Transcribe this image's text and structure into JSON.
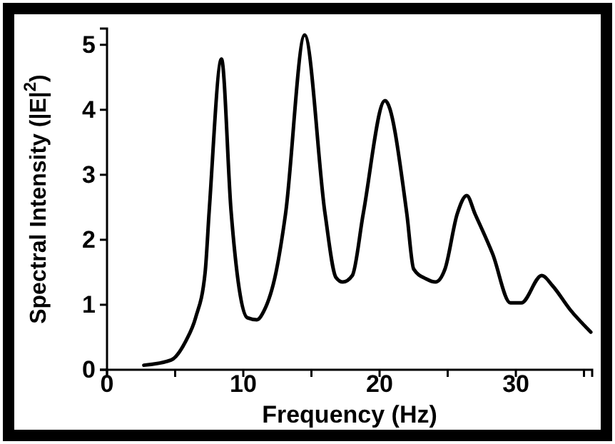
{
  "chart_data": {
    "type": "line",
    "xlabel": "Frequency (Hz)",
    "ylabel": "Spectral Intensity (|E|$^{2}$)",
    "xlim": [
      0,
      35.6
    ],
    "ylim": [
      0,
      5.25
    ],
    "xticks": [
      0,
      {
        "value": 5,
        "label": null
      },
      10,
      {
        "value": 15,
        "label": null
      },
      20,
      {
        "value": 25,
        "label": null
      },
      30,
      {
        "value": 35,
        "label": null
      }
    ],
    "yticks": [
      0,
      1,
      2,
      3,
      4,
      5
    ],
    "series": [
      {
        "color": "#000000",
        "x": [
          2.7,
          4.7,
          5.8,
          6.5,
          7.2,
          7.5,
          8.4,
          9.1,
          10.3,
          11.0,
          11.5,
          12.4,
          13.1,
          14.5,
          16.0,
          16.8,
          17.3,
          18.0,
          18.8,
          20.4,
          22.0,
          22.5,
          23.4,
          24.1,
          24.8,
          25.7,
          26.4,
          27.0,
          28.3,
          29.6,
          30.4,
          31.9,
          32.7,
          34.0,
          35.5
        ],
        "values": [
          0.07,
          0.15,
          0.45,
          0.8,
          1.5,
          2.45,
          4.78,
          2.45,
          0.8,
          0.77,
          0.9,
          1.5,
          2.4,
          5.15,
          2.4,
          1.42,
          1.35,
          1.45,
          2.4,
          4.14,
          2.4,
          1.55,
          1.4,
          1.35,
          1.55,
          2.4,
          2.68,
          2.4,
          1.78,
          1.03,
          1.03,
          1.45,
          1.29,
          0.92,
          0.58
        ]
      }
    ],
    "grid": false,
    "marker": "none",
    "line_style": "solid"
  }
}
